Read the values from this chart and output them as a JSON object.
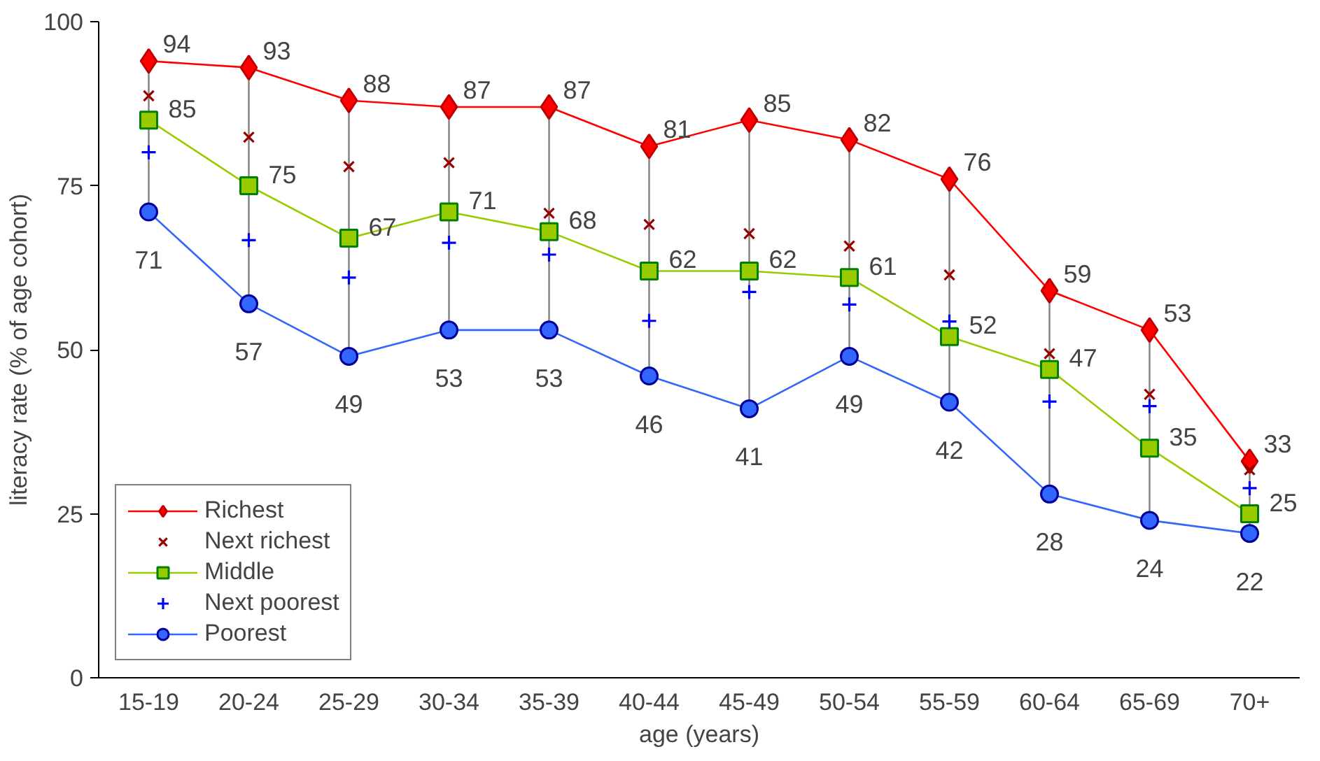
{
  "chart_data": {
    "type": "line",
    "xlabel": "age (years)",
    "ylabel": "literacy rate (% of age cohort)",
    "categories": [
      "15-19",
      "20-24",
      "25-29",
      "30-34",
      "35-39",
      "40-44",
      "45-49",
      "50-54",
      "55-59",
      "60-64",
      "65-69",
      "70+"
    ],
    "ylim": [
      0,
      100
    ],
    "yticks": [
      0,
      25,
      50,
      75,
      100
    ],
    "grid": false,
    "legend": "bottom left",
    "series": [
      {
        "name": "Richest",
        "color": "#ff0000",
        "marker": "diamond",
        "values": [
          94,
          93,
          88,
          87,
          87,
          81,
          85,
          82,
          76,
          59,
          53,
          33
        ],
        "value_labels": [
          "94",
          "93",
          "88",
          "87",
          "87",
          "81",
          "85",
          "82",
          "76",
          "59",
          "53",
          "33"
        ]
      },
      {
        "name": "Next richest",
        "type": "scatter",
        "color": "#990000",
        "marker": "x",
        "values": [
          88.7,
          82.4,
          77.9,
          78.5,
          70.8,
          69.1,
          67.7,
          65.8,
          61.4,
          49.4,
          43.2,
          31.7
        ]
      },
      {
        "name": "Middle",
        "color": "#99cc00",
        "marker": "square",
        "values": [
          85,
          75,
          67,
          71,
          68,
          62,
          62,
          61,
          52,
          47,
          35,
          25
        ],
        "value_labels": [
          "85",
          "75",
          "67",
          "71",
          "68",
          "62",
          "62",
          "61",
          "52",
          "47",
          "35",
          "25"
        ]
      },
      {
        "name": "Next poorest",
        "type": "scatter",
        "color": "#0000ff",
        "marker": "cross",
        "values": [
          80.1,
          66.7,
          61,
          66.3,
          64.5,
          54.4,
          58.8,
          56.9,
          54.3,
          42.1,
          41.4,
          28.9
        ]
      },
      {
        "name": "Poorest",
        "color": "#3366ff",
        "marker": "circle",
        "values": [
          71,
          57,
          49,
          53,
          53,
          46,
          41,
          49,
          42,
          28,
          24,
          22
        ],
        "value_labels": [
          "71",
          "57",
          "49",
          "53",
          "53",
          "46",
          "41",
          "49",
          "42",
          "28",
          "24",
          "22"
        ]
      }
    ]
  }
}
